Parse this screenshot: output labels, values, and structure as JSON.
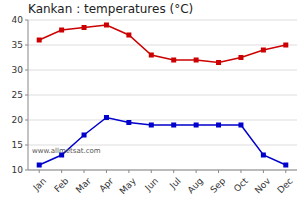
{
  "chart_data": {
    "type": "line",
    "title": "Kankan : temperatures (°C)",
    "categories": [
      "Jan",
      "Feb",
      "Mar",
      "Apr",
      "May",
      "Jun",
      "Jul",
      "Aug",
      "Sep",
      "Oct",
      "Nov",
      "Dec"
    ],
    "series": [
      {
        "color": "#cc0000",
        "marker": "square",
        "values": [
          36,
          38,
          38.5,
          39,
          37,
          33,
          32,
          32,
          31.5,
          32.5,
          34,
          35
        ]
      },
      {
        "color": "#0000cc",
        "marker": "square",
        "values": [
          11,
          13,
          17,
          20.5,
          19.5,
          19,
          19,
          19,
          19,
          19,
          13,
          11
        ]
      }
    ],
    "ylim": [
      10,
      40
    ],
    "yticks": [
      10,
      15,
      20,
      25,
      30,
      35,
      40
    ],
    "grid": true,
    "annotations": [
      "www.allmetsat.com"
    ]
  }
}
